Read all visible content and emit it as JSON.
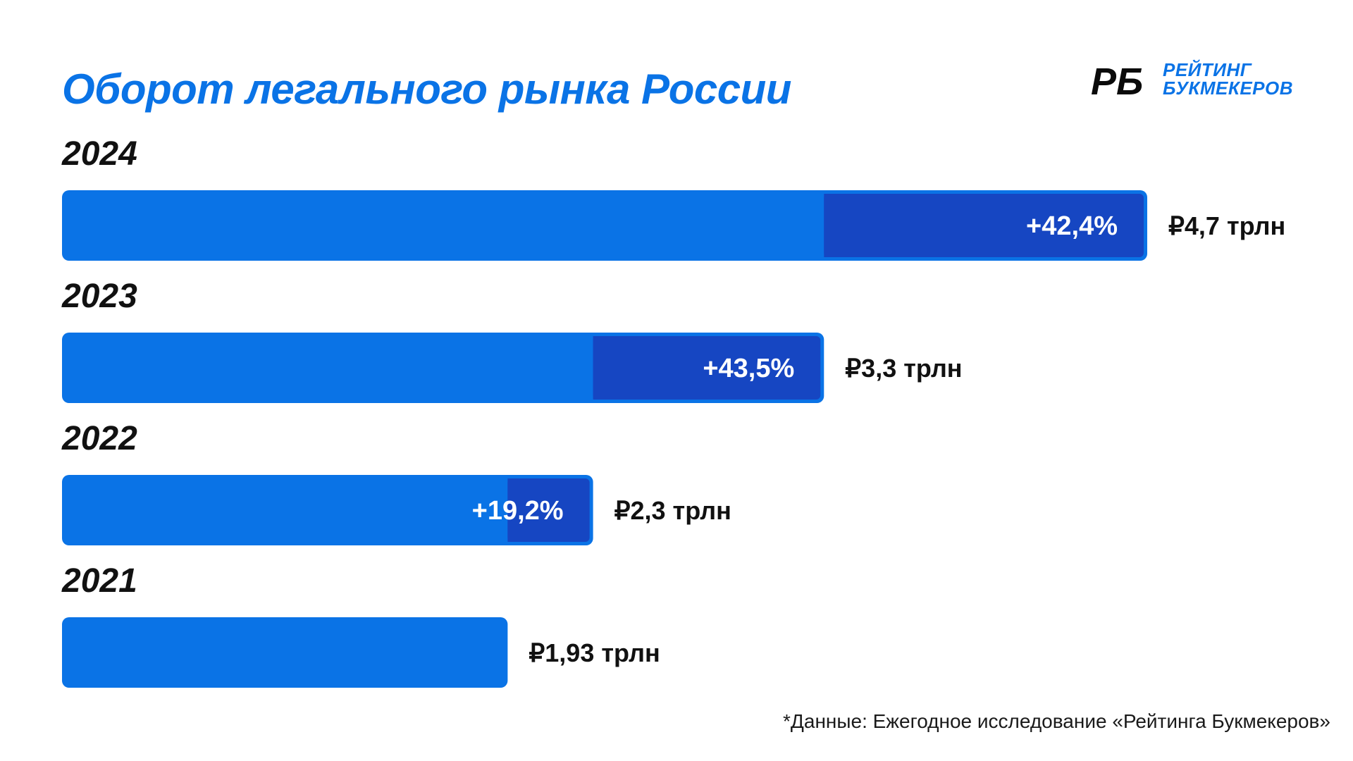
{
  "title": "Оборот легального рынка России",
  "logo": {
    "mark": "РБ",
    "line1": "РЕЙТИНГ",
    "line2": "БУКМЕКЕРОВ"
  },
  "footnote": "*Данные: Ежегодное исследование «Рейтинга Букмекеров»",
  "colors": {
    "bar": "#0a73e6",
    "growth": "#1646c2",
    "title": "#0a73e6",
    "text": "#111111"
  },
  "chart_data": {
    "type": "bar",
    "orientation": "horizontal",
    "title": "Оборот легального рынка России",
    "unit": "трлн ₽",
    "categories": [
      "2024",
      "2023",
      "2022",
      "2021"
    ],
    "values": [
      4.7,
      3.3,
      2.3,
      1.93
    ],
    "value_labels": [
      "₽4,7 трлн",
      "₽3,3 трлн",
      "₽2,3 трлн",
      "₽1,93 трлн"
    ],
    "growth_labels": [
      "+42,4%",
      "+43,5%",
      "+19,2%",
      ""
    ],
    "previous_values": [
      3.3,
      2.3,
      1.93,
      null
    ],
    "xlim": [
      0,
      4.7
    ]
  }
}
